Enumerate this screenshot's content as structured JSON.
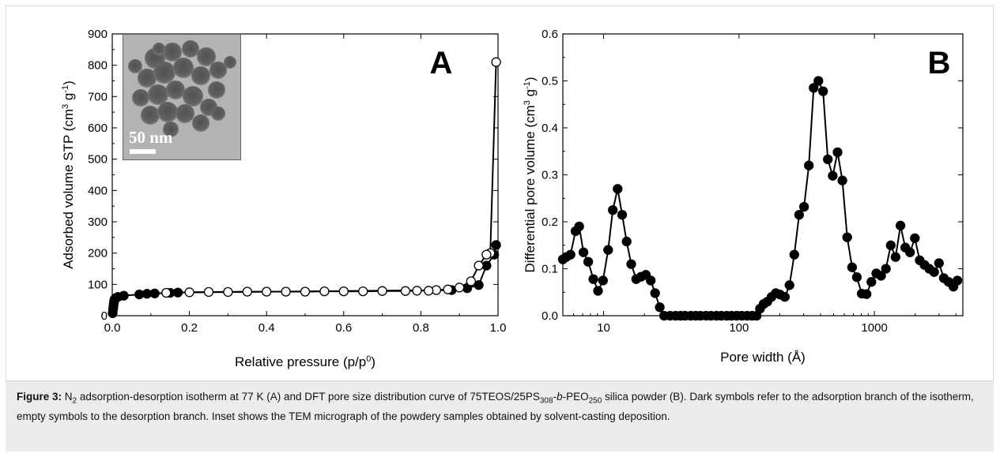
{
  "caption": {
    "label": "Figure 3:",
    "runs": [
      {
        "t": " N",
        "s": ""
      },
      {
        "t": "2",
        "s": "sub"
      },
      {
        "t": " adsorption-desorption isotherm at 77 K (A) and DFT pore size distribution curve of 75TEOS/25PS",
        "s": ""
      },
      {
        "t": "308",
        "s": "sub"
      },
      {
        "t": "-",
        "s": ""
      },
      {
        "t": "b",
        "s": "i"
      },
      {
        "t": "-PEO",
        "s": ""
      },
      {
        "t": "250",
        "s": "sub"
      },
      {
        "t": " silica powder (B). Dark symbols refer to the adsorption branch of the isotherm, empty symbols to the desorption branch. Inset shows the TEM micrograph of the powdery samples obtained by solvent-casting deposition.",
        "s": ""
      }
    ]
  },
  "inset": {
    "scale_label": "50 nm"
  },
  "chart_data": [
    {
      "type": "line",
      "panel_label": "A",
      "xlabel": "Relative pressure (p/p0)",
      "xlabel_runs": [
        {
          "t": "Relative pressure (p/p",
          "s": ""
        },
        {
          "t": "0",
          "s": "sup"
        },
        {
          "t": ")",
          "s": ""
        }
      ],
      "ylabel": "Adsorbed volume STP (cm3 g-1)",
      "ylabel_runs": [
        {
          "t": "Adsorbed volume STP (cm",
          "s": ""
        },
        {
          "t": "3",
          "s": "sup"
        },
        {
          "t": " g",
          "s": ""
        },
        {
          "t": "-1",
          "s": "sup"
        },
        {
          "t": ")",
          "s": ""
        }
      ],
      "xlim": [
        0.0,
        1.0
      ],
      "ylim": [
        0,
        900
      ],
      "xticks": [
        0.0,
        0.2,
        0.4,
        0.6,
        0.8,
        1.0
      ],
      "xtick_labels": [
        "0.0",
        "0.2",
        "0.4",
        "0.6",
        "0.8",
        "1.0"
      ],
      "yticks": [
        0,
        100,
        200,
        300,
        400,
        500,
        600,
        700,
        800,
        900
      ],
      "ytick_labels": [
        "0",
        "100",
        "200",
        "300",
        "400",
        "500",
        "600",
        "700",
        "800",
        "900"
      ],
      "grid": false,
      "series": [
        {
          "marker": "filled",
          "x": [
            0.001,
            0.002,
            0.003,
            0.004,
            0.005,
            0.006,
            0.008,
            0.01,
            0.015,
            0.03,
            0.07,
            0.09,
            0.11,
            0.15,
            0.17,
            0.88,
            0.92,
            0.95,
            0.97,
            0.99,
            0.995
          ],
          "y": [
            8,
            20,
            30,
            40,
            47,
            52,
            55,
            57,
            60,
            64,
            68,
            70,
            71,
            73,
            74,
            82,
            88,
            98,
            160,
            195,
            226
          ]
        },
        {
          "marker": "open",
          "x": [
            0.995,
            0.98,
            0.97,
            0.95,
            0.93,
            0.9,
            0.87,
            0.84,
            0.82,
            0.79,
            0.76,
            0.7,
            0.65,
            0.6,
            0.55,
            0.5,
            0.45,
            0.4,
            0.35,
            0.3,
            0.25,
            0.2,
            0.14
          ],
          "y": [
            810,
            200,
            195,
            160,
            110,
            90,
            84,
            82,
            80,
            80,
            79,
            79,
            78,
            78,
            78,
            77,
            77,
            77,
            77,
            76,
            76,
            75,
            73
          ]
        }
      ]
    },
    {
      "type": "line",
      "panel_label": "B",
      "xlabel": "Pore width (Å)",
      "ylabel": "Differential pore volume (cm3 g-1)",
      "ylabel_runs": [
        {
          "t": "Differential pore volume (cm",
          "s": ""
        },
        {
          "t": "3",
          "s": "sup"
        },
        {
          "t": " g",
          "s": ""
        },
        {
          "t": "-1",
          "s": "sup"
        },
        {
          "t": ")",
          "s": ""
        }
      ],
      "xscale": "log",
      "xlim": [
        5,
        4500
      ],
      "ylim": [
        0.0,
        0.6
      ],
      "xticks": [
        10,
        100,
        1000
      ],
      "xtick_labels": [
        "10",
        "100",
        "1000"
      ],
      "yticks": [
        0.0,
        0.1,
        0.2,
        0.3,
        0.4,
        0.5,
        0.6
      ],
      "ytick_labels": [
        "0.0",
        "0.1",
        "0.2",
        "0.3",
        "0.4",
        "0.5",
        "0.6"
      ],
      "grid": false,
      "series": [
        {
          "marker": "filled",
          "x": [
            5.0,
            5.3,
            5.7,
            6.2,
            6.6,
            7.1,
            7.7,
            8.4,
            9.1,
            9.9,
            10.8,
            11.7,
            12.7,
            13.7,
            14.8,
            16.0,
            17.4,
            18.9,
            20.5,
            22.3,
            24.0,
            26.0,
            28,
            31,
            34,
            37,
            40,
            44,
            48,
            52,
            57,
            62,
            68,
            74,
            81,
            88,
            96,
            105,
            115,
            125,
            135,
            143,
            152,
            162,
            174,
            187,
            201,
            218,
            236,
            256,
            278,
            302,
            328,
            356,
            386,
            418,
            453,
            492,
            534,
            580,
            630,
            684,
            742,
            806,
            875,
            950,
            1032,
            1121,
            1217,
            1321,
            1434,
            1557,
            1690,
            1834,
            1991,
            2161,
            2346,
            2546,
            2764,
            3000,
            3256,
            3534,
            3836,
            4100
          ],
          "y": [
            0.12,
            0.125,
            0.13,
            0.18,
            0.19,
            0.135,
            0.115,
            0.078,
            0.053,
            0.075,
            0.14,
            0.225,
            0.27,
            0.215,
            0.158,
            0.11,
            0.078,
            0.083,
            0.087,
            0.075,
            0.048,
            0.018,
            0.0,
            0.0,
            0.0,
            0.0,
            0.0,
            0.0,
            0.0,
            0.0,
            0.0,
            0.0,
            0.0,
            0.0,
            0.0,
            0.0,
            0.0,
            0.0,
            0.0,
            0.0,
            0.0,
            0.015,
            0.025,
            0.03,
            0.04,
            0.048,
            0.045,
            0.04,
            0.065,
            0.13,
            0.215,
            0.232,
            0.32,
            0.485,
            0.5,
            0.478,
            0.333,
            0.298,
            0.348,
            0.288,
            0.167,
            0.103,
            0.082,
            0.047,
            0.046,
            0.072,
            0.09,
            0.085,
            0.1,
            0.15,
            0.125,
            0.192,
            0.145,
            0.135,
            0.165,
            0.118,
            0.108,
            0.1,
            0.093,
            0.112,
            0.08,
            0.072,
            0.062,
            0.075
          ]
        }
      ]
    }
  ]
}
